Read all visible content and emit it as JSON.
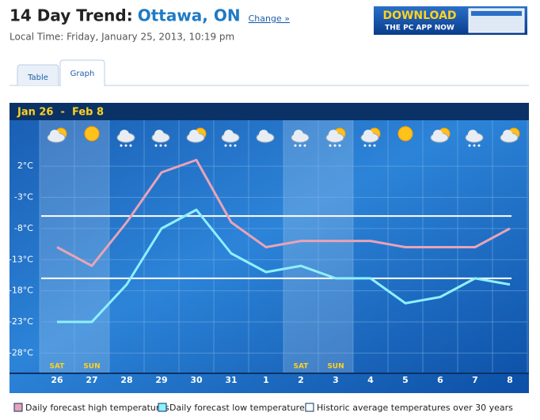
{
  "header": {
    "title": "14 Day Trend:",
    "location": "Ottawa, ON",
    "change_link": "Change »",
    "local_time": "Local Time: Friday, January 25, 2013, 10:19 pm"
  },
  "banner": {
    "line1": "DOWNLOAD",
    "line2": "THE PC APP NOW"
  },
  "tabs": [
    "Table",
    "Graph"
  ],
  "chart_data": {
    "type": "line",
    "title": "Jan 26  -  Feb 8",
    "categories": [
      "26",
      "27",
      "28",
      "29",
      "30",
      "31",
      "1",
      "2",
      "3",
      "4",
      "5",
      "6",
      "7",
      "8"
    ],
    "weekday_labels": [
      "SAT",
      "SUN",
      null,
      null,
      null,
      null,
      null,
      "SAT",
      "SUN",
      null,
      null,
      null,
      null,
      null
    ],
    "series": [
      {
        "name": "Daily forecast high temperatures",
        "color": "#e8a3b8",
        "values": [
          -11,
          -14,
          -7,
          1,
          3,
          -7,
          -11,
          -10,
          -10,
          -10,
          -11,
          -11,
          -11,
          -8
        ]
      },
      {
        "name": "Daily forecast low temperatures",
        "color": "#8ff0ff",
        "values": [
          -23,
          -23,
          -17,
          -8,
          -5,
          -12,
          -15,
          -14,
          -16,
          -16,
          -20,
          -19,
          -16,
          -17
        ]
      }
    ],
    "reference_lines": {
      "name": "Historic average temperatures over 30 years",
      "color": "#ffffff",
      "values": [
        -6,
        -16
      ]
    },
    "ylim": [
      -31,
      9
    ],
    "yticks": [
      {
        "value": 2,
        "label": "2°C"
      },
      {
        "value": -3,
        "label": "-3°C"
      },
      {
        "value": -8,
        "label": "-8°C"
      },
      {
        "value": -13,
        "label": "-13°C"
      },
      {
        "value": -18,
        "label": "-18°C"
      },
      {
        "value": -23,
        "label": "-23°C"
      },
      {
        "value": -28,
        "label": "-28°C"
      }
    ],
    "grid": true
  }
}
